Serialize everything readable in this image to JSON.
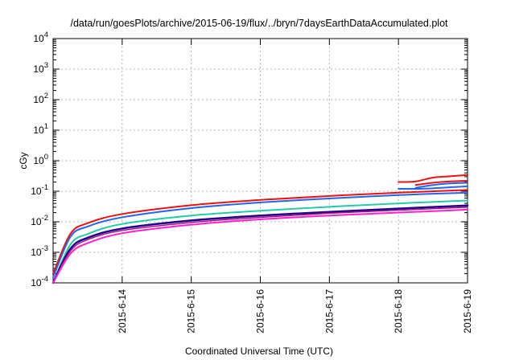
{
  "chart_data": {
    "type": "line",
    "title": "/data/run/goesPlots/archive/2015-06-19/flux/../bryn/7daysEarthDataAccumulated.plot",
    "xlabel": "Coordinated Universal Time (UTC)",
    "ylabel": "cGy",
    "y_scale": "log",
    "ylim": [
      0.0001,
      10000
    ],
    "y_ticks": [
      {
        "value": 0.0001,
        "base": "10",
        "exp": "-4"
      },
      {
        "value": 0.001,
        "base": "10",
        "exp": "-3"
      },
      {
        "value": 0.01,
        "base": "10",
        "exp": "-2"
      },
      {
        "value": 0.1,
        "base": "10",
        "exp": "-1"
      },
      {
        "value": 1,
        "base": "10",
        "exp": "0"
      },
      {
        "value": 10,
        "base": "10",
        "exp": "1"
      },
      {
        "value": 100,
        "base": "10",
        "exp": "2"
      },
      {
        "value": 1000,
        "base": "10",
        "exp": "3"
      },
      {
        "value": 10000,
        "base": "10",
        "exp": "4"
      }
    ],
    "xlim": [
      "2015-06-13T00:00",
      "2015-06-19T00:00"
    ],
    "x_ticks": [
      "2015-6-14",
      "2015-6-15",
      "2015-6-16",
      "2015-6-17",
      "2015-6-18",
      "2015-6-19"
    ],
    "grid": true,
    "legend": "none",
    "x": [
      "2015-06-13T00:00",
      "2015-06-13T06:00",
      "2015-06-13T12:00",
      "2015-06-14T00:00",
      "2015-06-15T00:00",
      "2015-06-16T00:00",
      "2015-06-17T00:00",
      "2015-06-18T00:00",
      "2015-06-19T00:00"
    ],
    "series": [
      {
        "color": "#ee1111",
        "width": 2.0,
        "values": [
          0.0002,
          0.004,
          0.009,
          0.018,
          0.035,
          0.052,
          0.07,
          0.09,
          0.11
        ]
      },
      {
        "color": "#2266ee",
        "width": 2.0,
        "values": [
          0.00015,
          0.0032,
          0.007,
          0.014,
          0.028,
          0.043,
          0.058,
          0.075,
          0.09
        ]
      },
      {
        "color": "#22ccaa",
        "width": 2.0,
        "values": [
          0.0001,
          0.0018,
          0.004,
          0.0085,
          0.016,
          0.023,
          0.031,
          0.04,
          0.05
        ]
      },
      {
        "color": "#220088",
        "width": 2.5,
        "values": [
          0.0001,
          0.0013,
          0.003,
          0.006,
          0.011,
          0.016,
          0.021,
          0.027,
          0.034
        ]
      },
      {
        "color": "#aa1188",
        "width": 1.5,
        "values": [
          0.0001,
          0.0011,
          0.0026,
          0.0052,
          0.0095,
          0.014,
          0.019,
          0.024,
          0.03
        ]
      },
      {
        "color": "#ff22cc",
        "width": 2.0,
        "values": [
          0.0001,
          0.0009,
          0.002,
          0.0042,
          0.008,
          0.012,
          0.016,
          0.02,
          0.025
        ]
      },
      {
        "color": "#2266ee",
        "width": 2.0,
        "x": [
          "2015-06-18T00:00",
          "2015-06-18T06:00",
          "2015-06-18T12:00",
          "2015-06-18T18:00",
          "2015-06-19T00:00"
        ],
        "values": [
          0.12,
          0.12,
          0.125,
          0.135,
          0.145
        ]
      },
      {
        "color": "#ee1111",
        "width": 2.0,
        "x": [
          "2015-06-18T00:00",
          "2015-06-18T06:00",
          "2015-06-18T12:00",
          "2015-06-18T18:00",
          "2015-06-19T00:00"
        ],
        "values": [
          0.2,
          0.21,
          0.28,
          0.31,
          0.34
        ]
      },
      {
        "color": "#ee1111",
        "width": 2.0,
        "x": [
          "2015-06-18T06:00",
          "2015-06-18T12:00",
          "2015-06-18T18:00",
          "2015-06-19T00:00"
        ],
        "values": [
          0.16,
          0.19,
          0.21,
          0.22
        ]
      },
      {
        "color": "#2266ee",
        "width": 2.0,
        "x": [
          "2015-06-18T06:00",
          "2015-06-18T12:00",
          "2015-06-18T18:00",
          "2015-06-19T00:00"
        ],
        "values": [
          0.13,
          0.16,
          0.18,
          0.19
        ]
      }
    ]
  }
}
